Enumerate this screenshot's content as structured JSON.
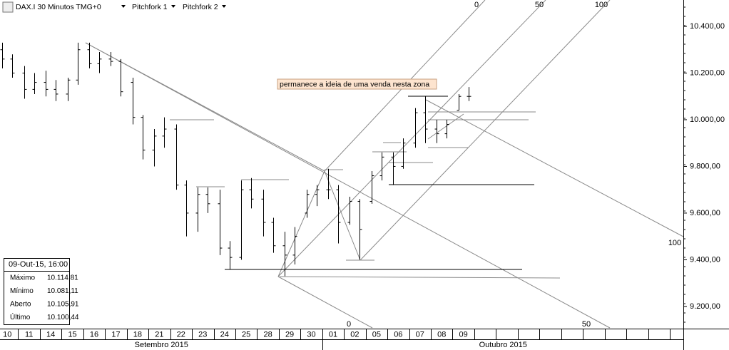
{
  "chart_data": {
    "type": "ohlc",
    "title": "DAX.I 30 Minutos TMG+0",
    "toolbar_items": [
      "Pitchfork 1",
      "Pitchfork 2"
    ],
    "annotation": "permanece a ideia de uma venda nesta zona",
    "pitchfork_labels": [
      "0",
      "50",
      "100",
      "0",
      "50",
      "100"
    ],
    "ylim": [
      9108,
      10513
    ],
    "yticks": [
      {
        "value": 9200,
        "label": "9.200,00"
      },
      {
        "value": 9400,
        "label": "9.400,00"
      },
      {
        "value": 9600,
        "label": "9.600,00"
      },
      {
        "value": 9800,
        "label": "9.800,00"
      },
      {
        "value": 10000,
        "label": "10.000,00"
      },
      {
        "value": 10200,
        "label": "10.200,00"
      },
      {
        "value": 10400,
        "label": "10.400,00"
      }
    ],
    "days": [
      "10",
      "11",
      "14",
      "15",
      "16",
      "17",
      "18",
      "21",
      "22",
      "23",
      "24",
      "25",
      "28",
      "29",
      "30",
      "01",
      "02",
      "05",
      "06",
      "07",
      "08",
      "09"
    ],
    "months": [
      "Setembro 2015",
      "Outubro 2015"
    ],
    "color": "#000000",
    "open": [
      10300,
      10260,
      10200,
      10130,
      10160,
      10130,
      10110,
      10170,
      10300,
      10240,
      10260,
      10250,
      10160,
      10010,
      9870,
      9930,
      9960,
      9720,
      9600,
      9680,
      9640,
      9450,
      9410,
      9700,
      9660,
      9560,
      9460,
      9420,
      9600,
      9680,
      9700,
      9700,
      9560,
      9650,
      9650,
      9760,
      9840,
      9800,
      9900,
      10030,
      9960,
      9940,
      10040,
      10100
    ],
    "high": [
      10330,
      10280,
      10230,
      10200,
      10210,
      10170,
      10180,
      10330,
      10330,
      10290,
      10290,
      10260,
      10180,
      10020,
      9960,
      10010,
      9980,
      9740,
      9710,
      9710,
      9700,
      9480,
      9740,
      9750,
      9700,
      9580,
      9520,
      9540,
      9700,
      9720,
      9790,
      9720,
      9670,
      9660,
      9780,
      9860,
      9860,
      9920,
      10050,
      10100,
      10000,
      10000,
      10110,
      10140
    ],
    "low": [
      10220,
      10180,
      10090,
      10110,
      10100,
      10080,
      10080,
      10150,
      10220,
      10200,
      10230,
      10100,
      9980,
      9830,
      9800,
      9880,
      9700,
      9500,
      9520,
      9600,
      9420,
      9360,
      9400,
      9620,
      9500,
      9430,
      9330,
      9380,
      9580,
      9630,
      9660,
      9470,
      9550,
      9400,
      9640,
      9740,
      9720,
      9790,
      9880,
      9900,
      9900,
      9920,
      10040,
      10080
    ],
    "close": [
      10260,
      10200,
      10130,
      10160,
      10130,
      10110,
      10170,
      10300,
      10240,
      10260,
      10250,
      10120,
      10010,
      9870,
      9930,
      9960,
      9720,
      9600,
      9680,
      9640,
      9450,
      9410,
      9700,
      9660,
      9560,
      9460,
      9420,
      9500,
      9680,
      9700,
      9700,
      9560,
      9650,
      9530,
      9760,
      9840,
      9800,
      9900,
      10030,
      9960,
      9940,
      9980,
      10100,
      10100
    ]
  },
  "info_box": {
    "title": "09-Out-15, 16:00",
    "rows": [
      [
        "Máximo",
        "10.114,81"
      ],
      [
        "Mínimo",
        "10.081,11"
      ],
      [
        "Aberto",
        "10.105,91"
      ],
      [
        "Último",
        "10.100,44"
      ]
    ]
  }
}
